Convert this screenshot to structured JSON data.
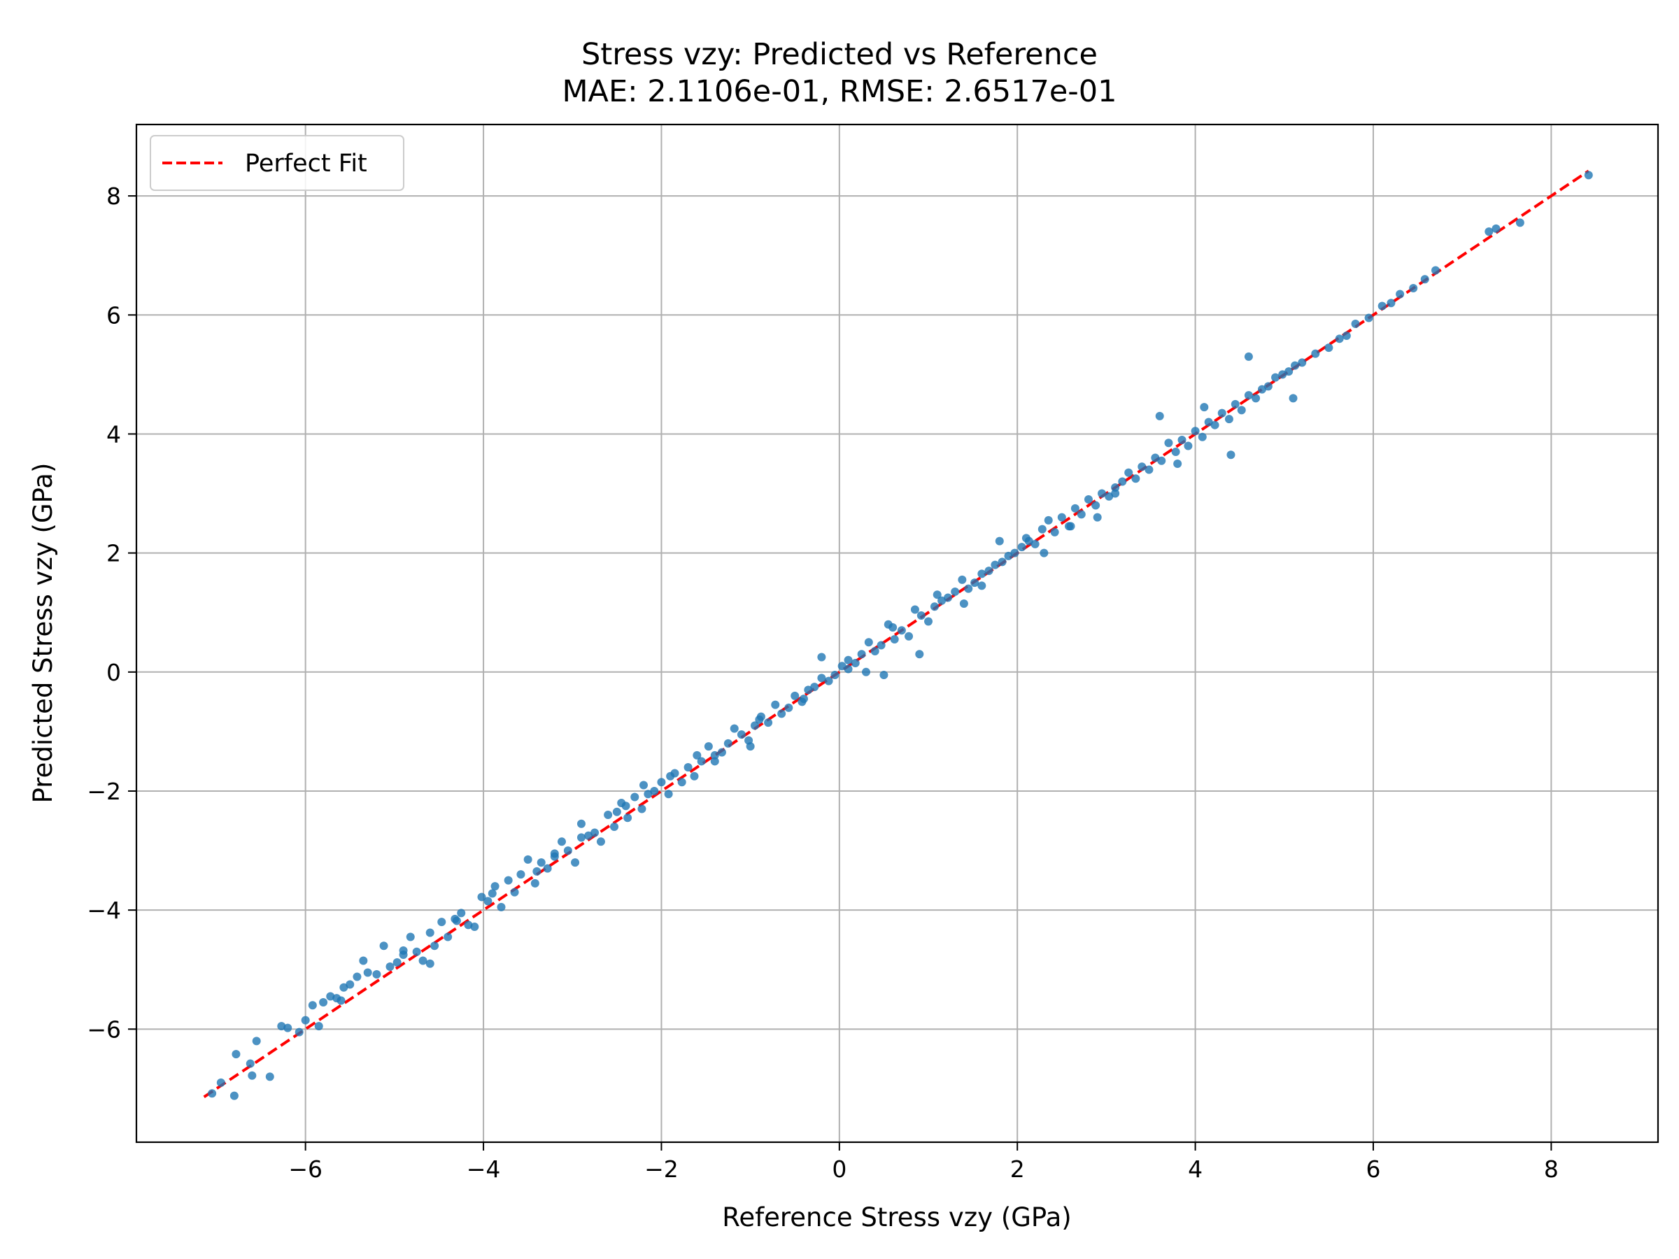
{
  "chart_data": {
    "type": "scatter",
    "title": "Stress vzy: Predicted vs Reference",
    "subtitle": "MAE: 2.1106e-01, RMSE: 2.6517e-01",
    "xlabel": "Reference Stress vzy (GPa)",
    "ylabel": "Predicted Stress vzy (GPa)",
    "xlim": [
      -7.9,
      9.2
    ],
    "ylim": [
      -7.9,
      9.2
    ],
    "xticks": [
      -6,
      -4,
      -2,
      0,
      2,
      4,
      6,
      8
    ],
    "yticks": [
      -6,
      -4,
      -2,
      0,
      2,
      4,
      6,
      8
    ],
    "xtick_labels": [
      "−6",
      "−4",
      "−2",
      "0",
      "2",
      "4",
      "6",
      "8"
    ],
    "ytick_labels": [
      "−6",
      "−4",
      "−2",
      "0",
      "2",
      "4",
      "6",
      "8"
    ],
    "grid": true,
    "legend_position": "top-left",
    "series": [
      {
        "name": "Perfect Fit",
        "kind": "line",
        "style": "dashed",
        "color": "#ff0000",
        "x": [
          -7.14,
          8.42
        ],
        "y": [
          -7.14,
          8.42
        ]
      },
      {
        "kind": "scatter",
        "color": "#1f77b4",
        "x": [
          -7.05,
          -6.95,
          -6.8,
          -6.78,
          -6.62,
          -6.55,
          -6.4,
          -6.27,
          -6.2,
          -6.07,
          -6.0,
          -5.92,
          -5.85,
          -5.8,
          -5.72,
          -5.65,
          -5.57,
          -5.5,
          -5.42,
          -5.35,
          -5.3,
          -5.2,
          -5.12,
          -5.05,
          -4.97,
          -4.9,
          -4.82,
          -4.75,
          -4.68,
          -4.6,
          -4.55,
          -4.47,
          -4.4,
          -4.32,
          -4.25,
          -4.17,
          -4.1,
          -4.02,
          -3.95,
          -3.87,
          -3.8,
          -3.72,
          -3.65,
          -3.58,
          -3.5,
          -3.42,
          -3.35,
          -3.28,
          -3.2,
          -3.12,
          -3.05,
          -2.97,
          -2.9,
          -2.82,
          -2.75,
          -2.68,
          -2.6,
          -2.53,
          -2.45,
          -2.38,
          -2.3,
          -2.22,
          -2.15,
          -2.08,
          -2.0,
          -1.92,
          -1.85,
          -1.77,
          -1.7,
          -1.63,
          -1.55,
          -1.47,
          -1.4,
          -1.32,
          -1.25,
          -1.18,
          -1.1,
          -1.02,
          -0.95,
          -0.88,
          -0.8,
          -0.72,
          -0.65,
          -0.57,
          -0.5,
          -0.42,
          -0.35,
          -0.28,
          -0.2,
          -0.12,
          -0.05,
          0.03,
          0.1,
          0.18,
          0.25,
          0.33,
          0.4,
          0.47,
          0.55,
          0.62,
          0.7,
          0.78,
          0.85,
          0.92,
          1.0,
          1.07,
          1.15,
          1.22,
          1.3,
          1.38,
          1.45,
          1.52,
          1.6,
          1.68,
          1.75,
          1.83,
          1.9,
          1.97,
          2.05,
          2.13,
          2.2,
          2.28,
          2.35,
          2.42,
          2.5,
          2.58,
          2.65,
          2.72,
          2.8,
          2.88,
          2.95,
          3.03,
          3.1,
          3.18,
          3.25,
          3.33,
          3.4,
          3.48,
          3.55,
          3.62,
          3.7,
          3.78,
          3.85,
          3.92,
          4.0,
          4.08,
          4.15,
          4.22,
          4.3,
          4.38,
          4.45,
          4.52,
          4.6,
          4.68,
          4.75,
          4.82,
          4.9,
          4.98,
          5.05,
          5.12,
          5.2,
          5.35,
          5.5,
          5.62,
          5.7,
          5.8,
          5.95,
          6.1,
          6.2,
          6.3,
          6.45,
          6.58,
          6.7,
          7.3,
          7.38,
          7.65,
          8.42,
          -6.6,
          -5.6,
          -4.9,
          -4.3,
          -3.9,
          -3.4,
          -2.9,
          -2.4,
          -1.9,
          -1.4,
          -0.9,
          -0.4,
          0.1,
          0.6,
          1.1,
          1.6,
          2.1,
          2.6,
          3.1,
          3.6,
          4.1,
          4.6,
          5.1,
          0.5,
          -1.0,
          -2.5,
          2.3,
          3.8,
          -0.2,
          0.9,
          1.8,
          -3.2,
          4.4,
          -1.6,
          0.3,
          2.9,
          -2.2,
          1.4,
          -4.6
        ],
        "y": [
          -7.08,
          -6.9,
          -7.12,
          -6.42,
          -6.58,
          -6.2,
          -6.8,
          -5.95,
          -5.98,
          -6.05,
          -5.85,
          -5.6,
          -5.95,
          -5.55,
          -5.45,
          -5.48,
          -5.3,
          -5.25,
          -5.12,
          -4.85,
          -5.05,
          -5.08,
          -4.6,
          -4.95,
          -4.88,
          -4.68,
          -4.45,
          -4.7,
          -4.85,
          -4.38,
          -4.6,
          -4.2,
          -4.45,
          -4.15,
          -4.05,
          -4.25,
          -4.28,
          -3.78,
          -3.85,
          -3.6,
          -3.95,
          -3.5,
          -3.7,
          -3.4,
          -3.15,
          -3.55,
          -3.2,
          -3.3,
          -3.1,
          -2.85,
          -3.0,
          -3.2,
          -2.55,
          -2.75,
          -2.7,
          -2.85,
          -2.4,
          -2.6,
          -2.2,
          -2.45,
          -2.1,
          -2.3,
          -2.05,
          -2.0,
          -1.85,
          -2.05,
          -1.7,
          -1.85,
          -1.6,
          -1.75,
          -1.5,
          -1.25,
          -1.4,
          -1.35,
          -1.2,
          -0.95,
          -1.05,
          -1.15,
          -0.9,
          -0.75,
          -0.85,
          -0.55,
          -0.7,
          -0.6,
          -0.4,
          -0.5,
          -0.3,
          -0.25,
          -0.1,
          -0.15,
          -0.05,
          0.1,
          0.05,
          0.15,
          0.3,
          0.5,
          0.35,
          0.45,
          0.8,
          0.55,
          0.7,
          0.6,
          1.05,
          0.95,
          0.85,
          1.1,
          1.2,
          1.25,
          1.35,
          1.55,
          1.4,
          1.5,
          1.65,
          1.7,
          1.8,
          1.85,
          1.95,
          2.0,
          2.1,
          2.2,
          2.15,
          2.4,
          2.55,
          2.35,
          2.6,
          2.45,
          2.75,
          2.65,
          2.9,
          2.8,
          3.0,
          2.95,
          3.1,
          3.2,
          3.35,
          3.25,
          3.45,
          3.4,
          3.6,
          3.55,
          3.85,
          3.7,
          3.9,
          3.8,
          4.05,
          3.95,
          4.2,
          4.15,
          4.35,
          4.25,
          4.5,
          4.4,
          4.65,
          4.6,
          4.75,
          4.8,
          4.95,
          5.0,
          5.05,
          5.15,
          5.2,
          5.35,
          5.45,
          5.6,
          5.65,
          5.85,
          5.95,
          6.15,
          6.2,
          6.35,
          6.45,
          6.6,
          6.75,
          7.4,
          7.45,
          7.55,
          8.35,
          -6.78,
          -5.52,
          -4.75,
          -4.18,
          -3.72,
          -3.35,
          -2.78,
          -2.25,
          -1.75,
          -1.5,
          -0.8,
          -0.45,
          0.2,
          0.75,
          1.3,
          1.45,
          2.25,
          2.45,
          3.0,
          4.3,
          4.45,
          5.3,
          4.6,
          -0.05,
          -1.25,
          -2.35,
          2.0,
          3.5,
          0.25,
          0.3,
          2.2,
          -3.05,
          3.65,
          -1.4,
          0.0,
          2.6,
          -1.9,
          1.15,
          -4.9
        ]
      }
    ]
  },
  "legend": {
    "label": "Perfect Fit"
  }
}
